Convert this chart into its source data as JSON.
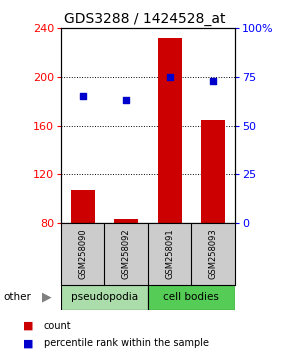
{
  "title": "GDS3288 / 1424528_at",
  "categories": [
    "GSM258090",
    "GSM258092",
    "GSM258091",
    "GSM258093"
  ],
  "bar_values": [
    107,
    83,
    232,
    165
  ],
  "bar_bottom": 80,
  "percentile_values": [
    65,
    63,
    75,
    73
  ],
  "ylim_left": [
    80,
    240
  ],
  "ylim_right": [
    0,
    100
  ],
  "yticks_left": [
    80,
    120,
    160,
    200,
    240
  ],
  "yticks_right": [
    0,
    25,
    50,
    75,
    100
  ],
  "bar_color": "#cc0000",
  "dot_color": "#0000cc",
  "group_colors": [
    "#aaddaa",
    "#55cc55"
  ],
  "group_labels": [
    "pseudopodia",
    "cell bodies"
  ],
  "other_label": "other",
  "legend_count_label": "count",
  "legend_pct_label": "percentile rank within the sample",
  "grid_yticks": [
    120,
    160,
    200
  ],
  "title_fontsize": 10,
  "tick_fontsize": 8,
  "label_fontsize": 7.5
}
